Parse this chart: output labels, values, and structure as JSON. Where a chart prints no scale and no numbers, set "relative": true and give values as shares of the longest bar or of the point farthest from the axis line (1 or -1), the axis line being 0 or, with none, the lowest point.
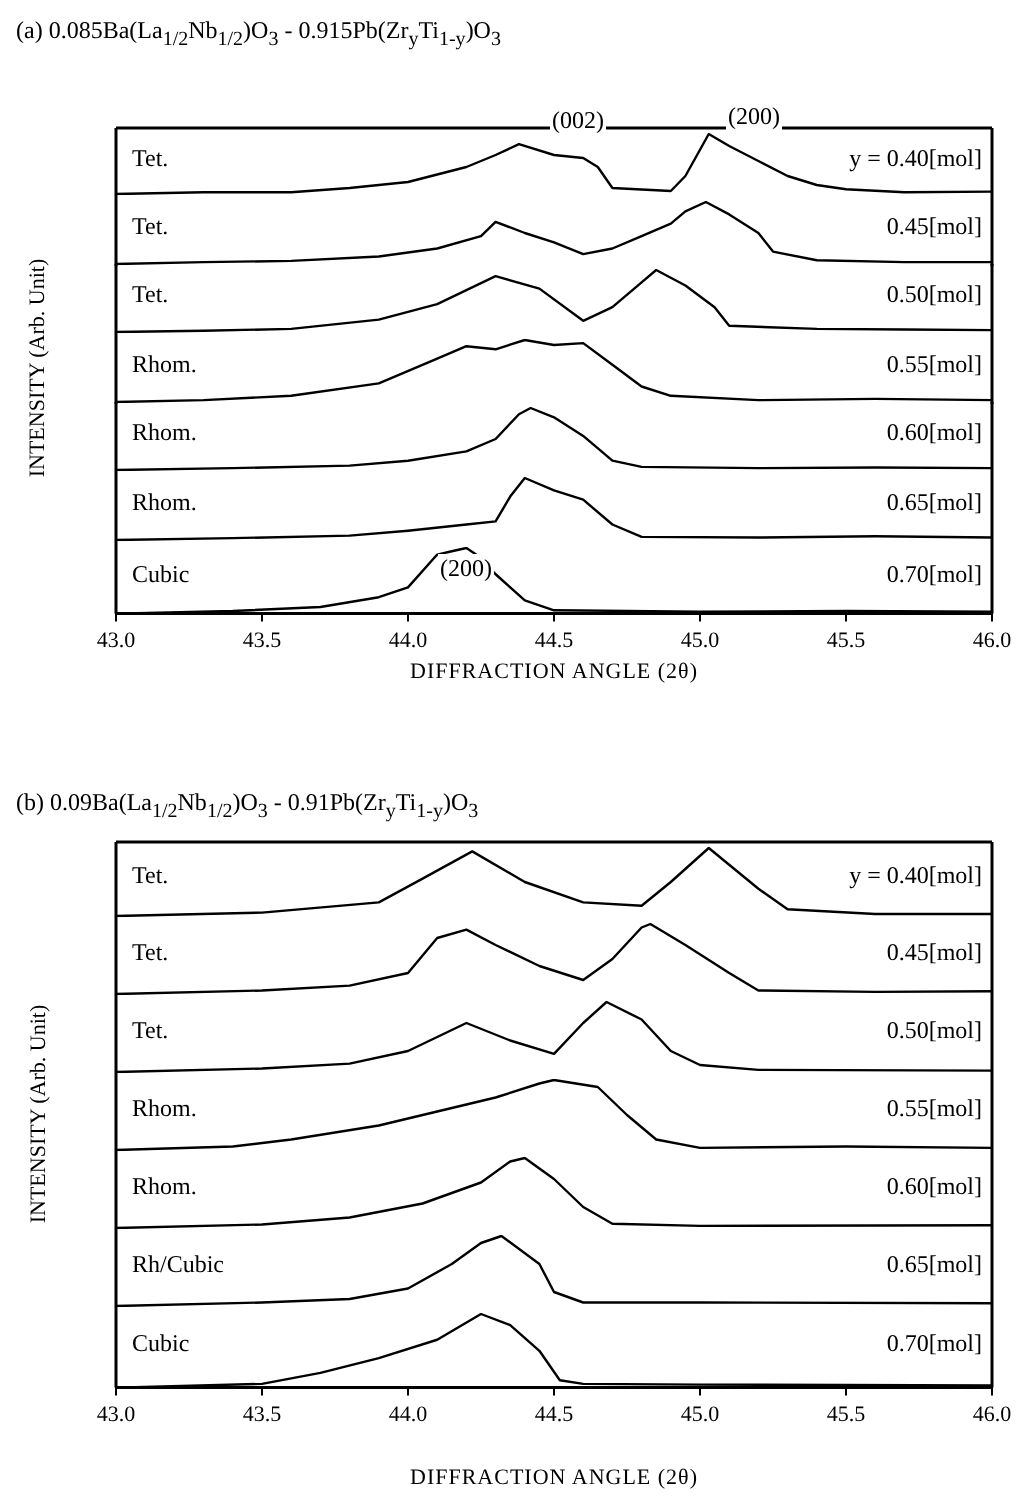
{
  "chart_data": [
    {
      "type": "line",
      "title": "(a) 0.085Ba(La$_{1/2}$Nb$_{1/2}$)O$_{3}$ - 0.915Pb(Zr$_{y}$Ti$_{1-y}$)O$_{3}$",
      "ylabel": "INTENSITY  (Arb. Unit)",
      "relative": true,
      "color": "#000000",
      "xlim": [
        43,
        46
      ],
      "tick_labels": false,
      "annotations": [
        "Tet.",
        "y = 0.40[mol]",
        "(002)",
        "(200)"
      ],
      "x": [
        43.0,
        43.3,
        43.6,
        43.8,
        44.0,
        44.2,
        44.3,
        44.38,
        44.5,
        44.6,
        44.65,
        44.7,
        44.9,
        44.95,
        45.03,
        45.1,
        45.2,
        45.3,
        45.4,
        45.5,
        45.7,
        46.0
      ],
      "values": [
        0,
        0.03,
        0.03,
        0.1,
        0.2,
        0.45,
        0.65,
        0.83,
        0.65,
        0.6,
        0.45,
        0.1,
        0.05,
        0.3,
        1.0,
        0.8,
        0.55,
        0.3,
        0.15,
        0.08,
        0.03,
        0.04
      ]
    },
    {
      "type": "line",
      "relative": true,
      "color": "#000000",
      "xlim": [
        43,
        46
      ],
      "tick_labels": false,
      "annotations": [
        "Tet.",
        "0.45[mol]"
      ],
      "x": [
        43.0,
        43.3,
        43.6,
        43.9,
        44.1,
        44.25,
        44.3,
        44.4,
        44.5,
        44.6,
        44.7,
        44.8,
        44.9,
        44.95,
        45.02,
        45.1,
        45.2,
        45.25,
        45.4,
        45.7,
        46.0
      ],
      "values": [
        0,
        0.03,
        0.05,
        0.12,
        0.25,
        0.45,
        0.68,
        0.5,
        0.35,
        0.16,
        0.25,
        0.45,
        0.65,
        0.85,
        1.0,
        0.8,
        0.5,
        0.2,
        0.06,
        0.03,
        0.03
      ]
    },
    {
      "type": "line",
      "relative": true,
      "color": "#000000",
      "xlim": [
        43,
        46
      ],
      "tick_labels": false,
      "annotations": [
        "Tet.",
        "0.50[mol]"
      ],
      "x": [
        43.0,
        43.3,
        43.6,
        43.9,
        44.1,
        44.3,
        44.45,
        44.6,
        44.7,
        44.8,
        44.85,
        44.95,
        45.05,
        45.1,
        45.4,
        45.7,
        46.0
      ],
      "values": [
        0,
        0.02,
        0.05,
        0.2,
        0.45,
        0.9,
        0.7,
        0.18,
        0.4,
        0.8,
        1.0,
        0.75,
        0.4,
        0.1,
        0.05,
        0.04,
        0.03
      ]
    },
    {
      "type": "line",
      "relative": true,
      "color": "#000000",
      "xlim": [
        43,
        46
      ],
      "tick_labels": false,
      "annotations": [
        "Rhom.",
        "0.55[mol]"
      ],
      "x": [
        43.0,
        43.3,
        43.6,
        43.9,
        44.1,
        44.2,
        44.3,
        44.4,
        44.5,
        44.6,
        44.7,
        44.8,
        44.9,
        45.2,
        45.6,
        46.0
      ],
      "values": [
        0,
        0.03,
        0.1,
        0.3,
        0.7,
        0.9,
        0.85,
        1.0,
        0.92,
        0.95,
        0.6,
        0.25,
        0.1,
        0.03,
        0.05,
        0.03
      ]
    },
    {
      "type": "line",
      "relative": true,
      "color": "#000000",
      "xlim": [
        43,
        46
      ],
      "tick_labels": false,
      "annotations": [
        "Rhom.",
        "0.60[mol]"
      ],
      "x": [
        43.0,
        43.4,
        43.8,
        44.0,
        44.2,
        44.3,
        44.38,
        44.42,
        44.5,
        44.6,
        44.7,
        44.8,
        45.2,
        45.6,
        46.0
      ],
      "values": [
        0,
        0.03,
        0.07,
        0.15,
        0.3,
        0.5,
        0.9,
        1.0,
        0.85,
        0.55,
        0.15,
        0.05,
        0.03,
        0.04,
        0.03
      ]
    },
    {
      "type": "line",
      "relative": true,
      "color": "#000000",
      "xlim": [
        43,
        46
      ],
      "tick_labels": false,
      "annotations": [
        "Rhom.",
        "0.65[mol]"
      ],
      "x": [
        43.0,
        43.4,
        43.8,
        44.0,
        44.2,
        44.3,
        44.35,
        44.4,
        44.5,
        44.6,
        44.7,
        44.8,
        45.2,
        45.6,
        46.0
      ],
      "values": [
        0,
        0.03,
        0.07,
        0.15,
        0.25,
        0.3,
        0.7,
        1.0,
        0.8,
        0.65,
        0.25,
        0.05,
        0.04,
        0.06,
        0.04
      ]
    },
    {
      "type": "line",
      "xlabel": "DIFFRACTION ANGLE (2θ)",
      "relative": true,
      "color": "#000000",
      "xlim": [
        43,
        46
      ],
      "xticks": [
        {
          "value": 43,
          "label": "43.0"
        },
        {
          "value": 43.5,
          "label": "43.5"
        },
        {
          "value": 44,
          "label": "44.0"
        },
        {
          "value": 44.5,
          "label": "44.5"
        },
        {
          "value": 45,
          "label": "45.0"
        },
        {
          "value": 45.5,
          "label": "45.5"
        },
        {
          "value": 46,
          "label": "46.0"
        }
      ],
      "annotations": [
        "Cubic",
        "0.70[mol]",
        "(200)"
      ],
      "x": [
        43.0,
        43.4,
        43.7,
        43.9,
        44.0,
        44.1,
        44.15,
        44.2,
        44.25,
        44.3,
        44.4,
        44.5,
        45.0,
        45.5,
        46.0
      ],
      "values": [
        0,
        0.04,
        0.1,
        0.25,
        0.4,
        0.9,
        0.95,
        1.0,
        0.85,
        0.6,
        0.2,
        0.05,
        0.03,
        0.04,
        0.03
      ]
    },
    {
      "type": "line",
      "title": "(b) 0.09Ba(La$_{1/2}$Nb$_{1/2}$)O$_{3}$ - 0.91Pb(Zr$_{y}$Ti$_{1-y}$)O$_{3}$",
      "ylabel": "INTENSITY  (Arb. Unit)",
      "relative": true,
      "color": "#000000",
      "xlim": [
        43,
        46
      ],
      "tick_labels": false,
      "annotations": [
        "Tet.",
        "y = 0.40[mol]"
      ],
      "x": [
        43.0,
        43.5,
        43.9,
        44.05,
        44.22,
        44.4,
        44.6,
        44.8,
        44.9,
        45.03,
        45.2,
        45.3,
        45.6,
        46.0
      ],
      "values": [
        0,
        0.05,
        0.2,
        0.55,
        0.95,
        0.5,
        0.2,
        0.15,
        0.5,
        1.0,
        0.4,
        0.1,
        0.03,
        0.03
      ]
    },
    {
      "type": "line",
      "relative": true,
      "color": "#000000",
      "xlim": [
        43,
        46
      ],
      "tick_labels": false,
      "annotations": [
        "Tet.",
        "0.45[mol]"
      ],
      "x": [
        43.0,
        43.5,
        43.8,
        44.0,
        44.1,
        44.2,
        44.3,
        44.45,
        44.6,
        44.7,
        44.8,
        44.83,
        44.95,
        45.1,
        45.2,
        45.6,
        46.0
      ],
      "values": [
        0,
        0.05,
        0.12,
        0.3,
        0.8,
        0.92,
        0.7,
        0.4,
        0.2,
        0.5,
        0.95,
        1.0,
        0.7,
        0.3,
        0.05,
        0.03,
        0.04
      ]
    },
    {
      "type": "line",
      "relative": true,
      "color": "#000000",
      "xlim": [
        43,
        46
      ],
      "tick_labels": false,
      "annotations": [
        "Tet.",
        "0.50[mol]"
      ],
      "x": [
        43.0,
        43.5,
        43.8,
        44.0,
        44.2,
        44.35,
        44.5,
        44.6,
        44.68,
        44.8,
        44.9,
        45.0,
        45.2,
        46.0
      ],
      "values": [
        0,
        0.05,
        0.12,
        0.3,
        0.7,
        0.45,
        0.26,
        0.7,
        1.0,
        0.75,
        0.3,
        0.1,
        0.03,
        0.02
      ]
    },
    {
      "type": "line",
      "relative": true,
      "color": "#000000",
      "xlim": [
        43,
        46
      ],
      "tick_labels": false,
      "annotations": [
        "Rhom.",
        "0.55[mol]"
      ],
      "x": [
        43.0,
        43.4,
        43.6,
        43.9,
        44.1,
        44.3,
        44.45,
        44.5,
        44.65,
        44.75,
        44.85,
        45.0,
        45.5,
        46.0
      ],
      "values": [
        0,
        0.05,
        0.15,
        0.35,
        0.55,
        0.75,
        0.95,
        1.0,
        0.9,
        0.5,
        0.15,
        0.03,
        0.05,
        0.03
      ]
    },
    {
      "type": "line",
      "relative": true,
      "color": "#000000",
      "xlim": [
        43,
        46
      ],
      "tick_labels": false,
      "annotations": [
        "Rhom.",
        "0.60[mol]"
      ],
      "x": [
        43.0,
        43.5,
        43.8,
        44.05,
        44.25,
        44.35,
        44.4,
        44.5,
        44.6,
        44.7,
        45.0,
        46.0
      ],
      "values": [
        0,
        0.05,
        0.15,
        0.35,
        0.65,
        0.95,
        1.0,
        0.7,
        0.3,
        0.06,
        0.03,
        0.04
      ]
    },
    {
      "type": "line",
      "relative": true,
      "color": "#000000",
      "xlim": [
        43,
        46
      ],
      "tick_labels": false,
      "annotations": [
        "Rh/Cubic",
        "0.65[mol]"
      ],
      "x": [
        43.0,
        43.5,
        43.8,
        44.0,
        44.15,
        44.25,
        44.32,
        44.45,
        44.5,
        44.6,
        45.0,
        46.0
      ],
      "values": [
        0,
        0.05,
        0.1,
        0.25,
        0.6,
        0.9,
        1.0,
        0.6,
        0.2,
        0.05,
        0.05,
        0.04
      ]
    },
    {
      "type": "line",
      "xlabel": "DIFFRACTION ANGLE (2θ)",
      "relative": true,
      "color": "#000000",
      "xlim": [
        43,
        46
      ],
      "xticks": [
        {
          "value": 43,
          "label": "43.0"
        },
        {
          "value": 43.5,
          "label": "43.5"
        },
        {
          "value": 44,
          "label": "44.0"
        },
        {
          "value": 44.5,
          "label": "44.5"
        },
        {
          "value": 45,
          "label": "45.0"
        },
        {
          "value": 45.5,
          "label": "45.5"
        },
        {
          "value": 46,
          "label": "46.0"
        }
      ],
      "annotations": [
        "Cubic",
        "0.70[mol]"
      ],
      "x": [
        43.0,
        43.5,
        43.7,
        43.9,
        44.1,
        44.25,
        44.35,
        44.45,
        44.52,
        44.6,
        45.0,
        46.0
      ],
      "values": [
        0,
        0.05,
        0.2,
        0.4,
        0.65,
        1.0,
        0.85,
        0.5,
        0.1,
        0.05,
        0.04,
        0.03
      ]
    }
  ]
}
